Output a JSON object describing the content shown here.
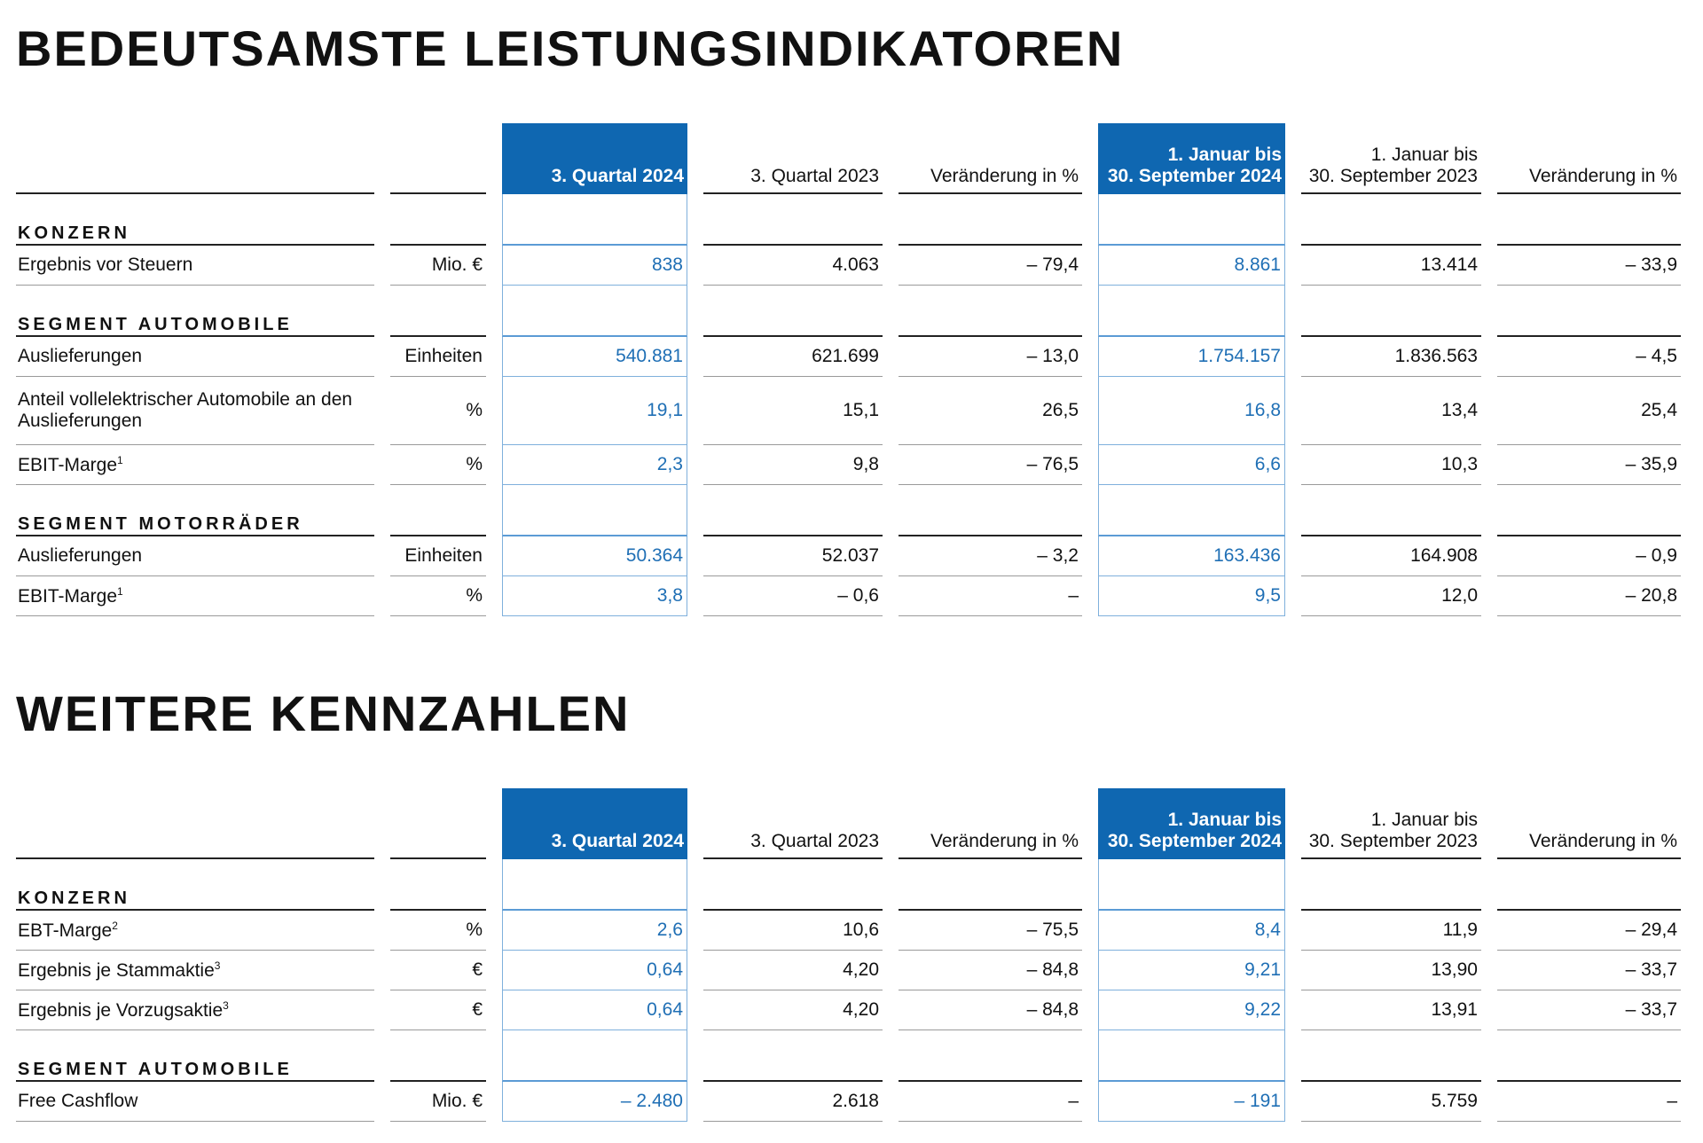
{
  "sections": [
    {
      "title": "BEDEUTSAMSTE LEISTUNGSINDIKATOREN",
      "columns": [
        [
          "3. Quartal 2024"
        ],
        [
          "3. Quartal 2023"
        ],
        [
          "Veränderung in %"
        ],
        [
          "1. Januar bis",
          "30. September 2024"
        ],
        [
          "1. Januar bis",
          "30. September 2023"
        ],
        [
          "Veränderung in %"
        ]
      ],
      "groups": [
        {
          "title": "KONZERN",
          "rows": [
            {
              "label": [
                "Ergebnis vor Steuern"
              ],
              "unit": "Mio. €",
              "values": [
                "838",
                "4.063",
                "– 79,4",
                "8.861",
                "13.414",
                "– 33,9"
              ]
            }
          ]
        },
        {
          "title": "SEGMENT AUTOMOBILE",
          "rows": [
            {
              "label": [
                "Auslieferungen"
              ],
              "unit": "Einheiten",
              "values": [
                "540.881",
                "621.699",
                "– 13,0",
                "1.754.157",
                "1.836.563",
                "– 4,5"
              ]
            },
            {
              "label": [
                "Anteil vollelektrischer Automobile an den",
                "Auslieferungen"
              ],
              "unit": "%",
              "values": [
                "19,1",
                "15,1",
                "26,5",
                "16,8",
                "13,4",
                "25,4"
              ]
            },
            {
              "label": [
                "EBIT-Marge"
              ],
              "note": "1",
              "unit": "%",
              "values": [
                "2,3",
                "9,8",
                "– 76,5",
                "6,6",
                "10,3",
                "– 35,9"
              ]
            }
          ]
        },
        {
          "title": "SEGMENT MOTORRÄDER",
          "rows": [
            {
              "label": [
                "Auslieferungen"
              ],
              "unit": "Einheiten",
              "values": [
                "50.364",
                "52.037",
                "– 3,2",
                "163.436",
                "164.908",
                "– 0,9"
              ]
            },
            {
              "label": [
                "EBIT-Marge"
              ],
              "note": "1",
              "unit": "%",
              "values": [
                "3,8",
                "– 0,6",
                "–",
                "9,5",
                "12,0",
                "– 20,8"
              ]
            }
          ]
        }
      ]
    },
    {
      "title": "WEITERE KENNZAHLEN",
      "columns": [
        [
          "3. Quartal 2024"
        ],
        [
          "3. Quartal 2023"
        ],
        [
          "Veränderung in %"
        ],
        [
          "1. Januar bis",
          "30. September 2024"
        ],
        [
          "1. Januar bis",
          "30. September 2023"
        ],
        [
          "Veränderung in %"
        ]
      ],
      "groups": [
        {
          "title": "KONZERN",
          "rows": [
            {
              "label": [
                "EBT-Marge"
              ],
              "note": "2",
              "unit": "%",
              "values": [
                "2,6",
                "10,6",
                "– 75,5",
                "8,4",
                "11,9",
                "– 29,4"
              ]
            },
            {
              "label": [
                "Ergebnis je Stammaktie"
              ],
              "note": "3",
              "unit": "€",
              "values": [
                "0,64",
                "4,20",
                "– 84,8",
                "9,21",
                "13,90",
                "– 33,7"
              ]
            },
            {
              "label": [
                "Ergebnis je Vorzugsaktie"
              ],
              "note": "3",
              "unit": "€",
              "values": [
                "0,64",
                "4,20",
                "– 84,8",
                "9,22",
                "13,91",
                "– 33,7"
              ]
            }
          ]
        },
        {
          "title": "SEGMENT AUTOMOBILE",
          "rows": [
            {
              "label": [
                "Free Cashflow"
              ],
              "unit": "Mio. €",
              "values": [
                "– 2.480",
                "2.618",
                "–",
                "– 191",
                "5.759",
                "–"
              ]
            }
          ]
        }
      ]
    }
  ]
}
